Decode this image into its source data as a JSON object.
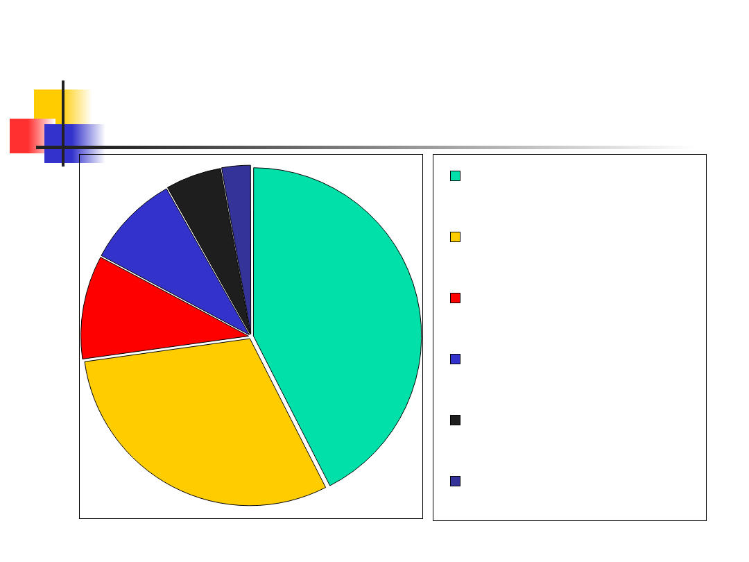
{
  "chart_data": {
    "type": "pie",
    "categories": [
      null,
      null,
      null,
      null,
      null,
      null
    ],
    "values": [
      42.5,
      30.3,
      10,
      9,
      5.4,
      2.8
    ],
    "colors": [
      "#00e0a8",
      "#ffcc00",
      "#ff0000",
      "#3333cc",
      "#1e1e1e",
      "#333399"
    ]
  }
}
